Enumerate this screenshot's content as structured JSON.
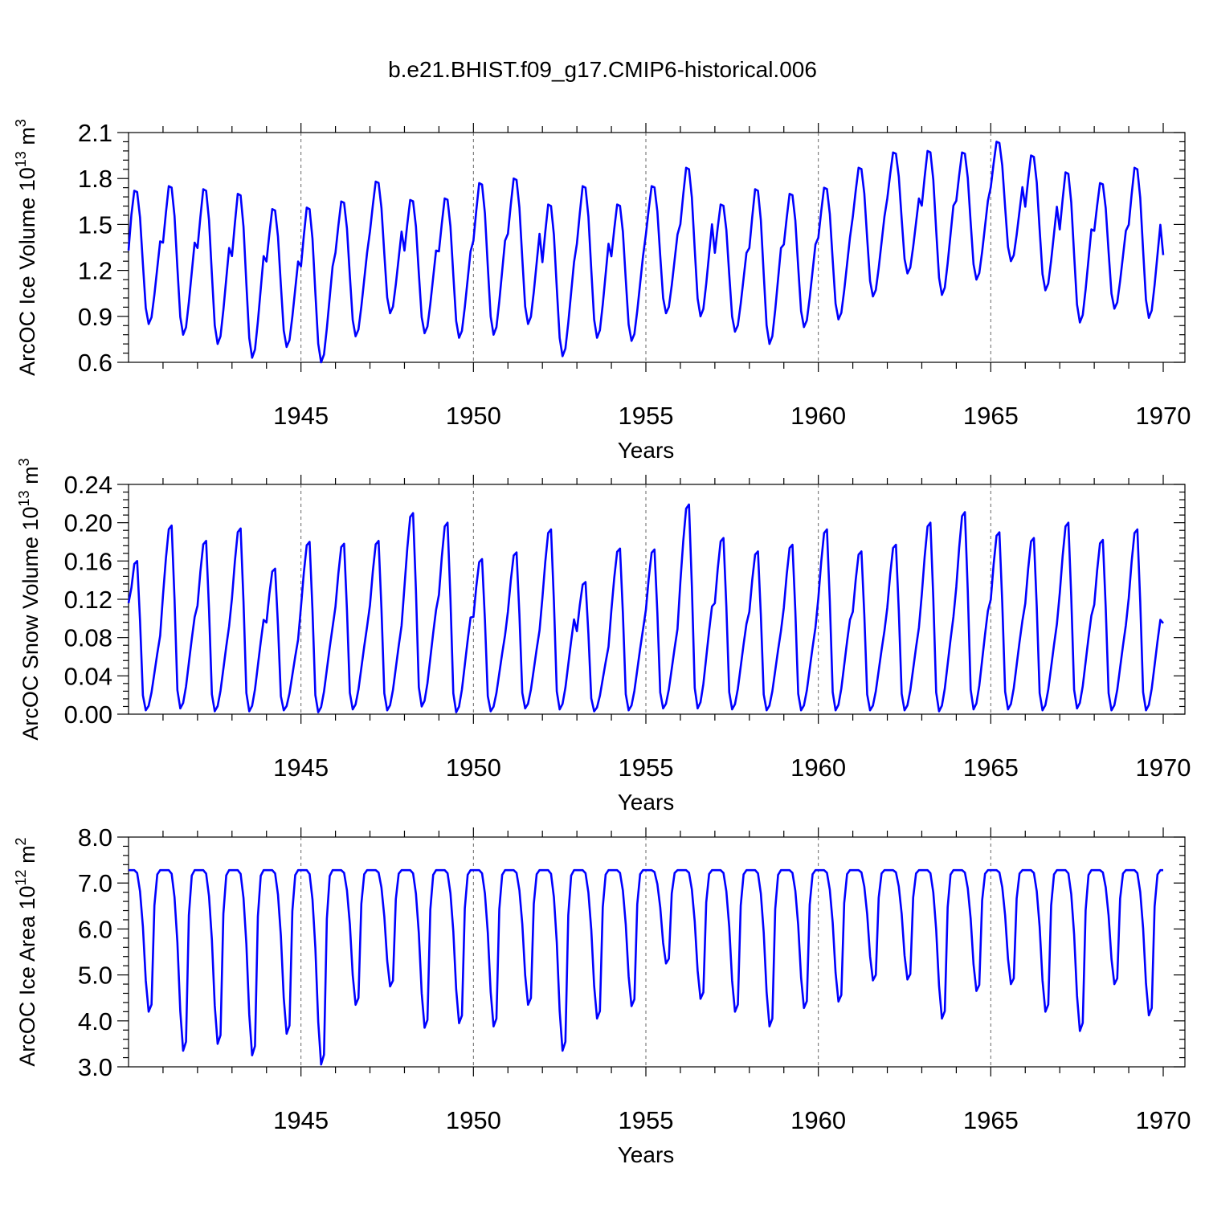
{
  "figure_title": "b.e21.BHIST.f09_g17.CMIP6-historical.006",
  "colors": {
    "series": "#0000ff",
    "frame": "#000000",
    "grid": "#666666"
  },
  "chart_data": [
    {
      "type": "line",
      "title": "b.e21.BHIST.f09_g17.CMIP6-historical.006",
      "xlabel": "Years",
      "ylabel_main": "ArcOC Ice Volume 10",
      "ylabel_exp": "13",
      "ylabel_unit": " m",
      "ylabel_unit_exp": "3",
      "xlim": [
        1940,
        1970
      ],
      "ylim": [
        0.6,
        2.1
      ],
      "xticks": [
        "1945",
        "1950",
        "1955",
        "1960",
        "1965",
        "1970"
      ],
      "yticks": [
        "0.6",
        "0.9",
        "1.2",
        "1.5",
        "1.8",
        "2.1"
      ],
      "grid": "vertical dashed at major years",
      "series": {
        "name": "ArcOC Ice Volume",
        "start": 1940.0,
        "step": 0.0833333,
        "yearly_max": [
          1.72,
          1.75,
          1.73,
          1.7,
          1.6,
          1.61,
          1.65,
          1.78,
          1.66,
          1.67,
          1.77,
          1.8,
          1.63,
          1.75,
          1.63,
          1.75,
          1.87,
          1.63,
          1.73,
          1.7,
          1.74,
          1.87,
          1.97,
          1.98,
          1.97,
          2.04,
          1.95,
          1.84,
          1.77,
          1.87
        ],
        "yearly_min": [
          0.85,
          0.78,
          0.72,
          0.63,
          0.7,
          0.6,
          0.77,
          0.92,
          0.79,
          0.76,
          0.78,
          0.85,
          0.64,
          0.76,
          0.74,
          0.92,
          0.9,
          0.8,
          0.72,
          0.83,
          0.88,
          1.03,
          1.18,
          1.04,
          1.14,
          1.26,
          1.07,
          0.86,
          0.95,
          0.89
        ],
        "start_value": 1.33,
        "end_value": 1.3
      }
    },
    {
      "type": "line",
      "xlabel": "Years",
      "ylabel_main": "ArcOC Snow Volume 10",
      "ylabel_exp": "13",
      "ylabel_unit": " m",
      "ylabel_unit_exp": "3",
      "xlim": [
        1940,
        1970
      ],
      "ylim": [
        0.0,
        0.24
      ],
      "xticks": [
        "1945",
        "1950",
        "1955",
        "1960",
        "1965",
        "1970"
      ],
      "yticks": [
        "0.00",
        "0.04",
        "0.08",
        "0.12",
        "0.16",
        "0.20",
        "0.24"
      ],
      "grid": "vertical dashed at major years",
      "series": {
        "name": "ArcOC Snow Volume",
        "start": 1940.0,
        "step": 0.0833333,
        "yearly_max": [
          0.16,
          0.197,
          0.181,
          0.194,
          0.152,
          0.18,
          0.178,
          0.181,
          0.21,
          0.2,
          0.162,
          0.169,
          0.193,
          0.138,
          0.173,
          0.172,
          0.219,
          0.184,
          0.17,
          0.177,
          0.193,
          0.17,
          0.177,
          0.2,
          0.211,
          0.19,
          0.184,
          0.2,
          0.182,
          0.193
        ],
        "yearly_min": [
          0.004,
          0.006,
          0.003,
          0.003,
          0.004,
          0.002,
          0.005,
          0.004,
          0.008,
          0.002,
          0.003,
          0.006,
          0.005,
          0.003,
          0.004,
          0.006,
          0.006,
          0.005,
          0.004,
          0.004,
          0.004,
          0.004,
          0.004,
          0.003,
          0.005,
          0.005,
          0.004,
          0.006,
          0.004,
          0.004
        ],
        "start_value": 0.116,
        "end_value": 0.095
      }
    },
    {
      "type": "line",
      "xlabel": "Years",
      "ylabel_main": "ArcOC Ice Area 10",
      "ylabel_exp": "12",
      "ylabel_unit": " m",
      "ylabel_unit_exp": "2",
      "xlim": [
        1940,
        1970
      ],
      "ylim": [
        3.0,
        8.0
      ],
      "xticks": [
        "1945",
        "1950",
        "1955",
        "1960",
        "1965",
        "1970"
      ],
      "yticks": [
        "3.0",
        "4.0",
        "5.0",
        "6.0",
        "7.0",
        "8.0"
      ],
      "grid": "vertical dashed at major years",
      "series": {
        "name": "ArcOC Ice Area",
        "start": 1940.0,
        "step": 0.0833333,
        "yearly_max": [
          7.28,
          7.28,
          7.28,
          7.28,
          7.28,
          7.28,
          7.28,
          7.28,
          7.28,
          7.28,
          7.28,
          7.28,
          7.28,
          7.28,
          7.28,
          7.28,
          7.28,
          7.28,
          7.28,
          7.28,
          7.28,
          7.28,
          7.28,
          7.28,
          7.28,
          7.28,
          7.28,
          7.28,
          7.28,
          7.28
        ],
        "yearly_min": [
          4.2,
          3.35,
          3.5,
          3.25,
          3.72,
          3.05,
          4.35,
          4.75,
          3.85,
          3.95,
          3.88,
          4.35,
          3.35,
          4.05,
          4.32,
          5.25,
          4.48,
          4.2,
          3.88,
          4.28,
          4.42,
          4.88,
          4.9,
          4.05,
          4.65,
          4.8,
          4.2,
          3.78,
          4.8,
          4.12
        ],
        "start_value": 7.28,
        "end_value": 7.28
      }
    }
  ]
}
